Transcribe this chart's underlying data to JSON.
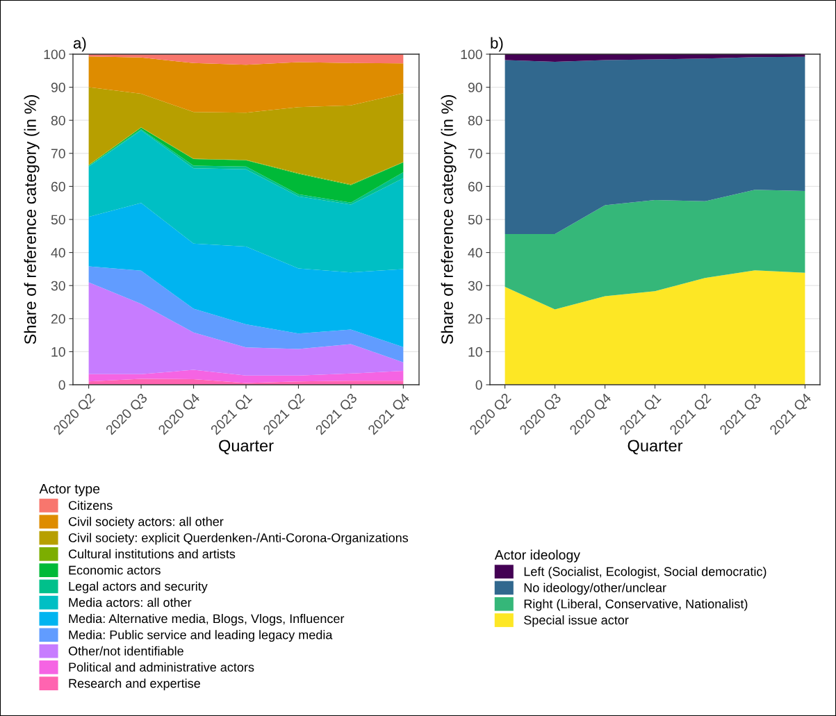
{
  "chart_data": [
    {
      "type": "area",
      "title": "a)",
      "xlabel": "Quarter",
      "ylabel": "Share of reference category (in %)",
      "legend_title": "Actor type",
      "stacked": true,
      "legend": "bottom",
      "grid": true,
      "ylim": [
        0,
        100
      ],
      "yticks": [
        0,
        10,
        20,
        30,
        40,
        50,
        60,
        70,
        80,
        90,
        100
      ],
      "categories": [
        "2020 Q2",
        "2020 Q3",
        "2020 Q4",
        "2021 Q1",
        "2021 Q2",
        "2021 Q3",
        "2021 Q4"
      ],
      "series": [
        {
          "name": "Research and expertise",
          "color": "#ff64b0",
          "values": [
            1,
            1.8,
            1.7,
            0.5,
            1,
            1.2,
            1.2
          ]
        },
        {
          "name": "Political and administrative actors",
          "color": "#f564e3",
          "values": [
            2.2,
            1.4,
            2.8,
            2.3,
            1.8,
            2.2,
            3.0
          ]
        },
        {
          "name": "Other/not identifiable",
          "color": "#c77cff",
          "values": [
            27.8,
            21.3,
            11.3,
            8.5,
            8,
            8.9,
            2.6
          ]
        },
        {
          "name": "Media: Public service and leading legacy media",
          "color": "#619cff",
          "values": [
            4.8,
            10,
            7.2,
            7,
            4.7,
            4.4,
            4.6
          ]
        },
        {
          "name": "Media: Alternative media, Blogs, Vlogs, Influencer",
          "color": "#00b4f0",
          "values": [
            15,
            20.5,
            19.7,
            23.5,
            19.7,
            17.3,
            23.6
          ]
        },
        {
          "name": "Media actors: all other",
          "color": "#00bfc4",
          "values": [
            15.2,
            22,
            22.8,
            23.4,
            21.8,
            20.5,
            27.5
          ]
        },
        {
          "name": "Legal actors and security",
          "color": "#00c08b",
          "values": [
            0.2,
            0.3,
            0.8,
            0.8,
            0.6,
            0.6,
            1.8
          ]
        },
        {
          "name": "Economic actors",
          "color": "#00ba38",
          "values": [
            0.2,
            0.5,
            2,
            1.9,
            6.2,
            5.3,
            3
          ]
        },
        {
          "name": "Cultural institutions and artists",
          "color": "#7cae00",
          "values": [
            0.1,
            0.1,
            0.1,
            0.1,
            0.2,
            0.2,
            0.1
          ]
        },
        {
          "name": "Civil society: explicit Querdenken-/Anti-Corona-Organizations",
          "color": "#b79f00",
          "values": [
            23.5,
            10.1,
            14.1,
            14.3,
            20,
            23.9,
            20.8
          ]
        },
        {
          "name": "Civil society actors: all other",
          "color": "#de8c00",
          "values": [
            9.3,
            11,
            14.8,
            14.5,
            13.6,
            12.8,
            9
          ]
        },
        {
          "name": "Citizens",
          "color": "#f8766d",
          "values": [
            0.7,
            1,
            2.7,
            3.2,
            2.4,
            2.7,
            2.8
          ]
        }
      ]
    },
    {
      "type": "area",
      "title": "b)",
      "xlabel": "Quarter",
      "ylabel": "Share of reference category (in %)",
      "legend_title": "Actor ideology",
      "stacked": true,
      "legend": "bottom",
      "grid": true,
      "ylim": [
        0,
        100
      ],
      "yticks": [
        0,
        10,
        20,
        30,
        40,
        50,
        60,
        70,
        80,
        90,
        100
      ],
      "categories": [
        "2020 Q2",
        "2020 Q3",
        "2020 Q4",
        "2021 Q1",
        "2021 Q2",
        "2021 Q3",
        "2021 Q4"
      ],
      "series": [
        {
          "name": "Special issue actor",
          "color": "#fde725",
          "values": [
            29.6,
            22.8,
            26.8,
            28.3,
            32.3,
            34.6,
            33.9
          ]
        },
        {
          "name": "Right (Liberal, Conservative, Nationalist)",
          "color": "#35b779",
          "values": [
            16,
            22.8,
            27.5,
            27.6,
            23.2,
            24.4,
            24.7
          ]
        },
        {
          "name": "No ideology/other/unclear",
          "color": "#31688e",
          "values": [
            52.6,
            52.1,
            43.9,
            42.5,
            43.2,
            40.1,
            40.6
          ]
        },
        {
          "name": "Left (Socialist, Ecologist, Social democratic)",
          "color": "#440154",
          "values": [
            1.8,
            2.3,
            1.8,
            1.6,
            1.3,
            0.9,
            0.8
          ]
        }
      ]
    }
  ]
}
